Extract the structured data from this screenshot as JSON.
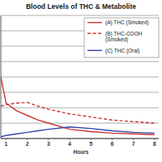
{
  "chart_data": {
    "type": "line",
    "title": "Blood Levels of THC & Metabolite",
    "x_label": "Hours",
    "x": [
      0.75,
      1,
      1.5,
      2,
      2.5,
      3,
      4,
      5,
      6,
      7,
      8
    ],
    "xlim": [
      0.75,
      8.2
    ],
    "xticks": [
      1,
      2,
      3,
      4,
      5,
      6,
      7,
      8
    ],
    "ylim": [
      0,
      8
    ],
    "yticks": [
      0,
      1,
      2,
      3,
      4,
      5,
      6,
      7,
      8
    ],
    "grid": true,
    "legend": "upper right",
    "tick_labels": "x",
    "series": [
      {
        "name": "(A) THC (Smoked)",
        "color": "#cc3333",
        "line_style": "solid",
        "values": [
          4.0,
          2.3,
          1.8,
          1.5,
          1.2,
          1.0,
          0.6,
          0.45,
          0.35,
          0.3,
          0.25
        ]
      },
      {
        "name": "(B) THC-COOH (Smoked)",
        "color": "#cc3333",
        "line_style": "dashed",
        "values": [
          2.1,
          2.2,
          2.3,
          2.35,
          2.1,
          1.9,
          1.6,
          1.4,
          1.2,
          1.1,
          1.0
        ]
      },
      {
        "name": "(C) THC (Oral)",
        "color": "#3344aa",
        "line_style": "solid",
        "values": [
          0.1,
          0.2,
          0.3,
          0.4,
          0.5,
          0.6,
          0.75,
          0.65,
          0.5,
          0.4,
          0.35
        ]
      }
    ]
  }
}
